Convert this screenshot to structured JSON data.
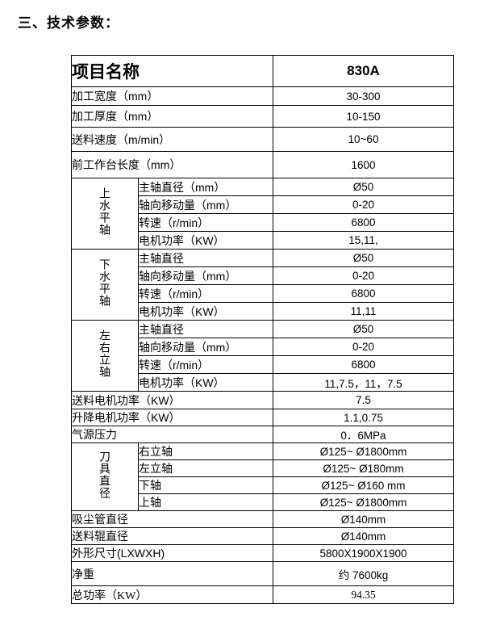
{
  "title": "三、技术参数：",
  "table": {
    "header": {
      "name_label": "项目名称",
      "model": "830A"
    },
    "basic": [
      {
        "label": "加工宽度（mm）",
        "value": "30-300"
      },
      {
        "label": "加工厚度（mm）",
        "value": "10-150"
      },
      {
        "label": "送料速度（m/min）",
        "value": "10~60"
      },
      {
        "label": "前工作台长度（mm）",
        "value": "1600"
      }
    ],
    "groups": [
      {
        "group_label": "上水平轴",
        "rows": [
          {
            "label": "主轴直径（mm）",
            "value": "Ø50"
          },
          {
            "label": "轴向移动量（mm）",
            "value": "0-20"
          },
          {
            "label": "转速（r/min）",
            "value": "6800"
          },
          {
            "label": "电机功率（KW）",
            "value": "15,11,"
          }
        ]
      },
      {
        "group_label": "下水平轴",
        "rows": [
          {
            "label": "主轴直径",
            "value": "Ø50"
          },
          {
            "label": "轴向移动量（mm）",
            "value": "0-20"
          },
          {
            "label": "转速（r/min）",
            "value": "6800"
          },
          {
            "label": "电机功率（KW）",
            "value": "11,11"
          }
        ]
      },
      {
        "group_label": "左右立轴",
        "rows": [
          {
            "label": "主轴直径",
            "value": "Ø50"
          },
          {
            "label": "轴向移动量（mm）",
            "value": "0-20"
          },
          {
            "label": "转速（r/min）",
            "value": "6800"
          },
          {
            "label": "电机功率（KW）",
            "value": "11,7.5，11，7.5"
          }
        ]
      }
    ],
    "middle": [
      {
        "label": "送料电机功率（KW）",
        "value": "7.5"
      },
      {
        "label": "升降电机功率（KW）",
        "value": "1.1,0.75"
      },
      {
        "label": "气源压力",
        "value": "0．6MPa"
      }
    ],
    "tool_group": {
      "group_label": "刀具直径",
      "rows": [
        {
          "label": "右立轴",
          "value": "Ø125~ Ø1800mm"
        },
        {
          "label": "左立轴",
          "value": "Ø125~ Ø180mm"
        },
        {
          "label": "下轴",
          "value": "Ø125~ Ø160 mm"
        },
        {
          "label": "上轴",
          "value": "Ø125~ Ø1800mm"
        }
      ]
    },
    "bottom": [
      {
        "label": "吸尘管直径",
        "value": "Ø140mm"
      },
      {
        "label": "送料辊直径",
        "value": "Ø140mm"
      },
      {
        "label": "外形尺寸(LXWXH)",
        "value": "5800X1900X1900"
      },
      {
        "label": "净重",
        "value": "约 7600kg"
      },
      {
        "label": "总功率（KW）",
        "value": "94.35"
      }
    ]
  }
}
